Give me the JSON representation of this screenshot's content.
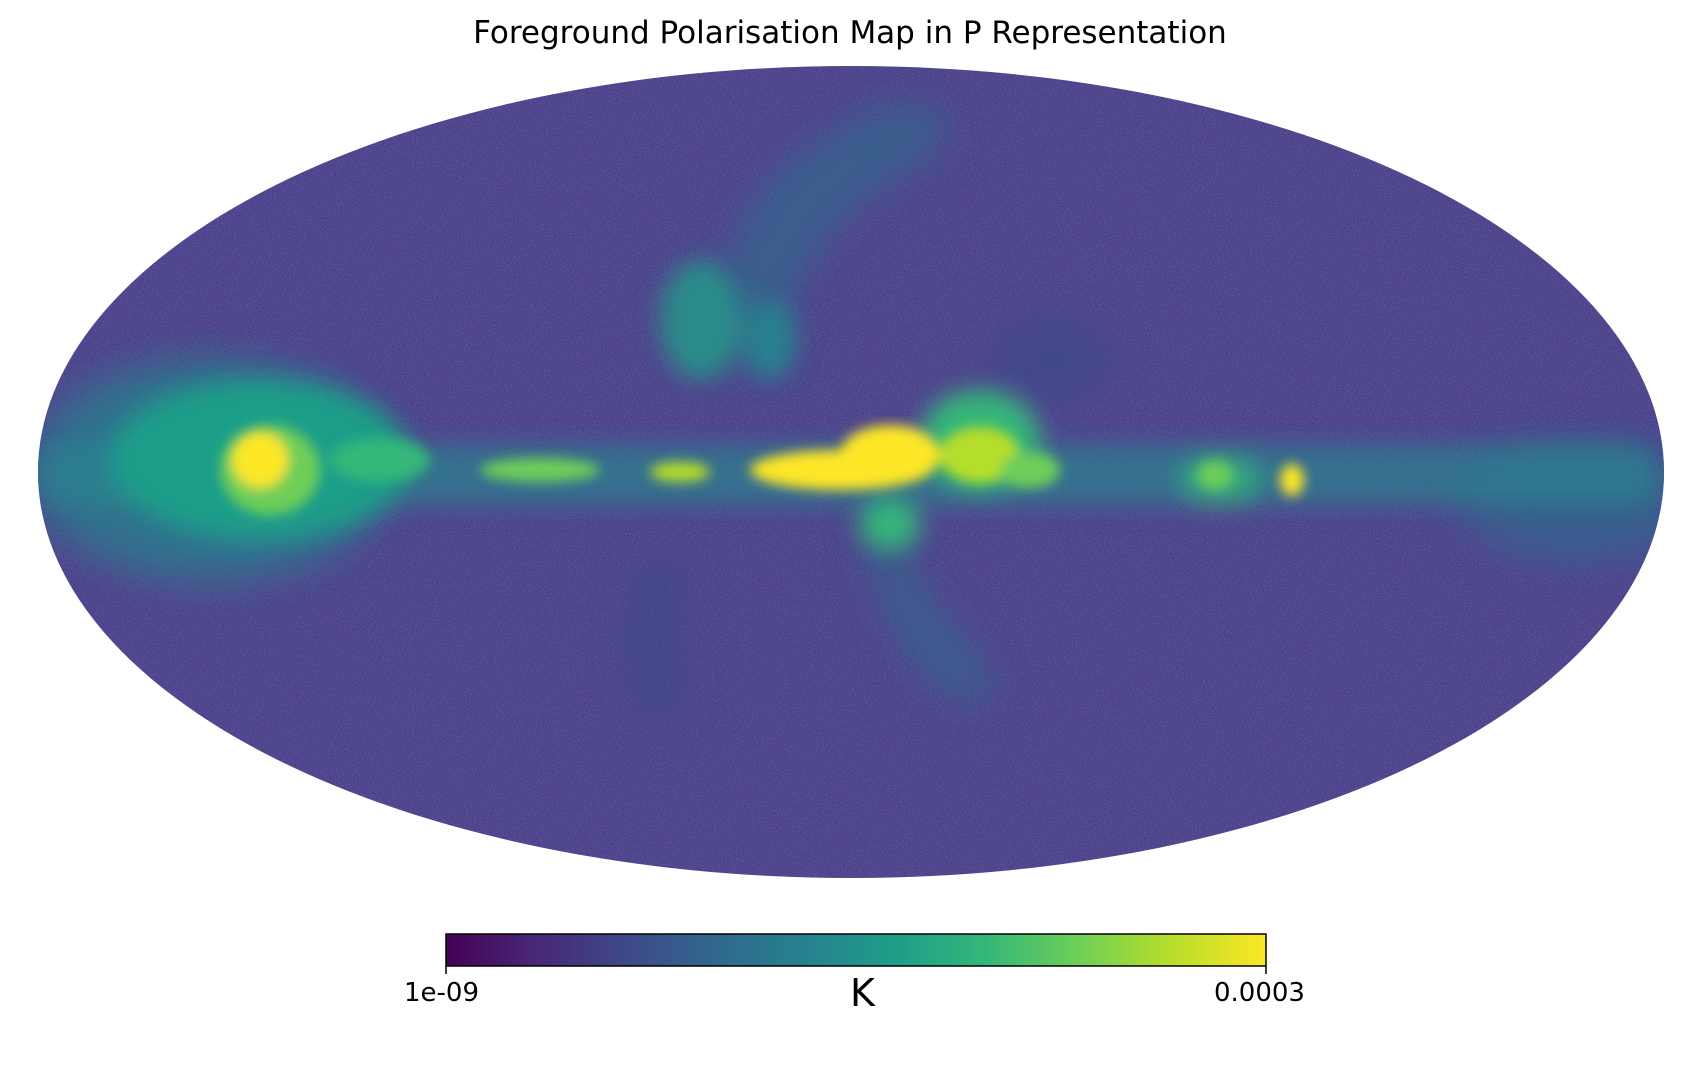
{
  "chart_data": {
    "type": "heatmap",
    "projection": "mollweide",
    "title": "Foreground Polarisation Map in P Representation",
    "colormap": "viridis",
    "colorbar": {
      "min_label": "1e-09",
      "max_label": "0.0003",
      "min_value": 1e-09,
      "max_value": 0.0003,
      "unit": "K",
      "orientation": "horizontal",
      "placement": "bottom"
    },
    "grid": false,
    "colors": {
      "low": "#440154",
      "background_field": "#3b2a7a",
      "mid": "#21918c",
      "high": "#fde725"
    }
  }
}
